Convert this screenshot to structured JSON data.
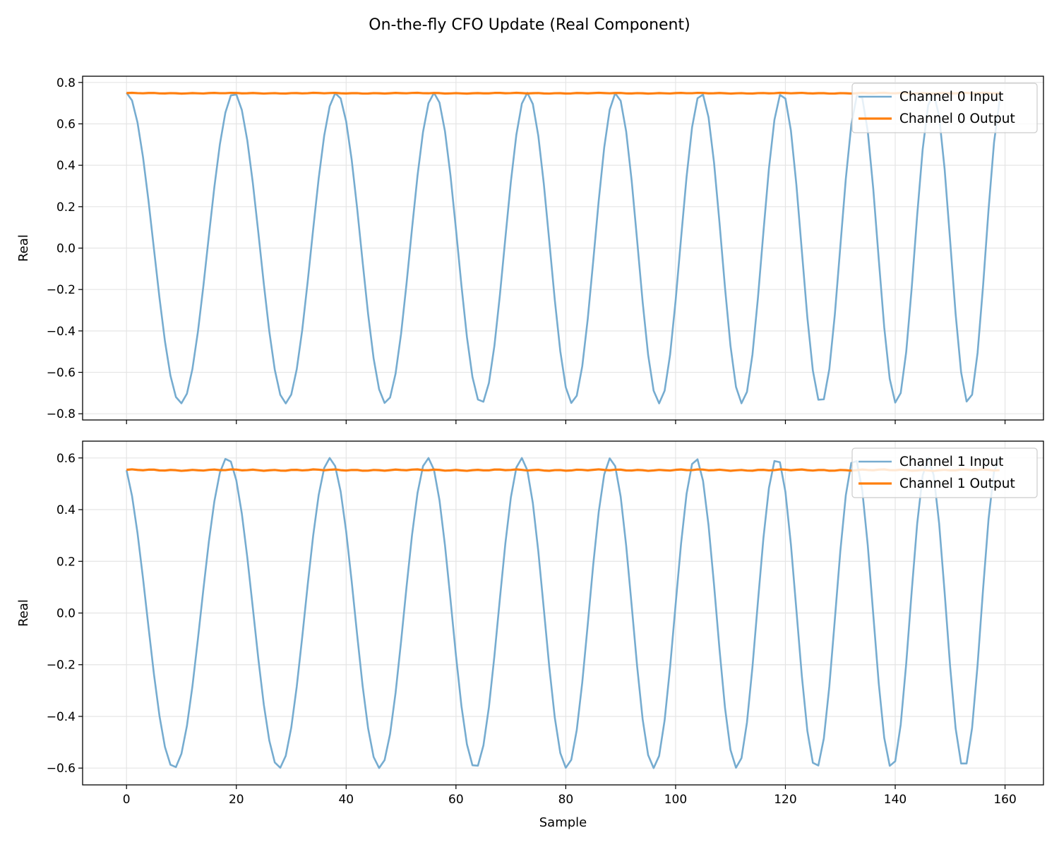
{
  "figure": {
    "title": "On-the-fly CFO Update (Real Component)"
  },
  "chart_data": [
    {
      "type": "line",
      "xlabel": "",
      "ylabel": "Real",
      "xlim": [
        -8,
        167
      ],
      "ylim": [
        -0.83,
        0.83
      ],
      "xticks": [
        0,
        20,
        40,
        60,
        80,
        100,
        120,
        140,
        160
      ],
      "show_xtick_labels": false,
      "yticks": [
        -0.8,
        -0.6,
        -0.4,
        -0.2,
        0.0,
        0.2,
        0.4,
        0.6,
        0.8
      ],
      "ytick_labels": [
        "−0.8",
        "−0.6",
        "−0.4",
        "−0.2",
        "0.0",
        "0.2",
        "0.4",
        "0.6",
        "0.8"
      ],
      "grid": true,
      "legend": "top-right",
      "input": {
        "name": "Channel 0 Input",
        "amplitude": 0.75,
        "phase": 0.0,
        "period_start": 20,
        "period_end": 12.5,
        "n_samples": 160
      },
      "output": {
        "name": "Channel 0 Output",
        "level": 0.748,
        "ripple": 0.002,
        "n_samples": 160
      },
      "colors": {
        "input": "#76acd0",
        "output": "#ff7f0e"
      }
    },
    {
      "type": "line",
      "xlabel": "Sample",
      "ylabel": "Real",
      "xlim": [
        -8,
        167
      ],
      "ylim": [
        -0.665,
        0.665
      ],
      "xticks": [
        0,
        20,
        40,
        60,
        80,
        100,
        120,
        140,
        160
      ],
      "xtick_labels": [
        "0",
        "20",
        "40",
        "60",
        "80",
        "100",
        "120",
        "140",
        "160"
      ],
      "show_xtick_labels": true,
      "yticks": [
        -0.6,
        -0.4,
        -0.2,
        0.0,
        0.2,
        0.4,
        0.6
      ],
      "ytick_labels": [
        "−0.6",
        "−0.4",
        "−0.2",
        "0.0",
        "0.2",
        "0.4",
        "0.6"
      ],
      "grid": true,
      "legend": "top-right",
      "input": {
        "name": "Channel 1 Input",
        "amplitude": 0.6,
        "phase": 0.4,
        "period_start": 20,
        "period_end": 12.5,
        "n_samples": 160
      },
      "output": {
        "name": "Channel 1 Output",
        "level": 0.553,
        "ripple": 0.003,
        "n_samples": 160
      },
      "colors": {
        "input": "#76acd0",
        "output": "#ff7f0e"
      }
    }
  ]
}
